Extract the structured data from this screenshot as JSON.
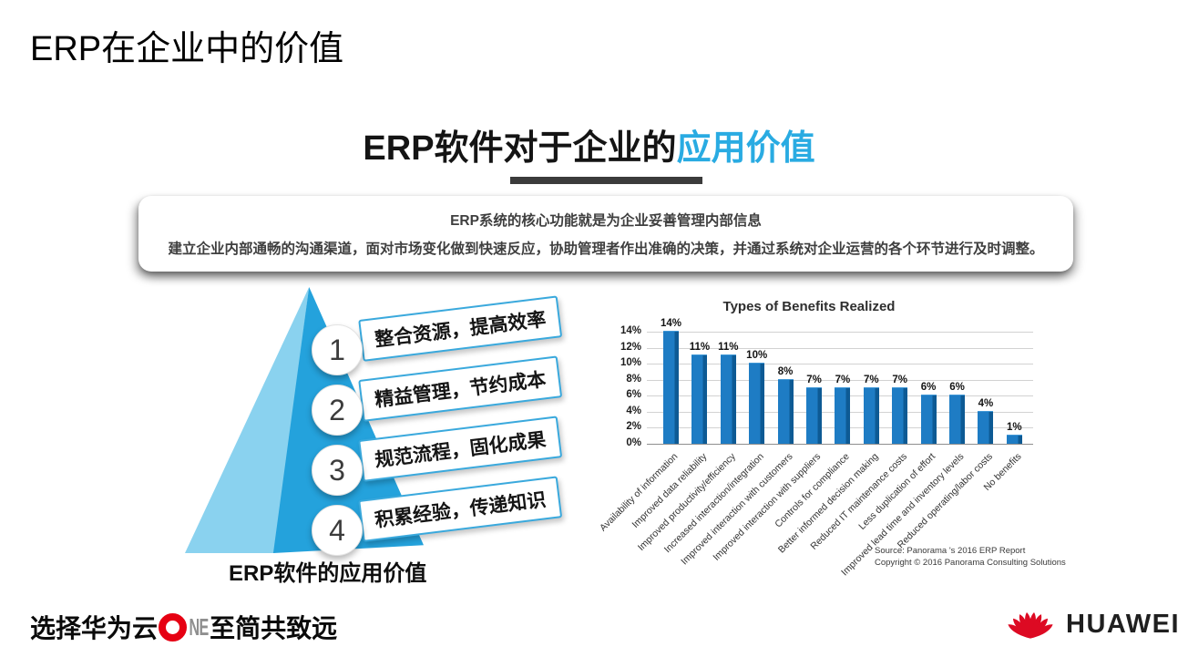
{
  "page_title": "ERP在企业中的价值",
  "heading": {
    "black": "ERP软件对于企业的",
    "blue": "应用价值"
  },
  "summary_card": {
    "line1": "ERP系统的核心功能就是为企业妥善管理内部信息",
    "line2": "建立企业内部通畅的沟通渠道，面对市场变化做到快速反应，协助管理者作出准确的决策，并通过系统对企业运营的各个环节进行及时调整。"
  },
  "pyramid": {
    "caption": "ERP软件的应用价值",
    "items": [
      {
        "num": "1",
        "label": "整合资源，提高效率"
      },
      {
        "num": "2",
        "label": "精益管理，节约成本"
      },
      {
        "num": "3",
        "label": "规范流程，固化成果"
      },
      {
        "num": "4",
        "label": "积累经验，传递知识"
      }
    ]
  },
  "chart_data": {
    "type": "bar",
    "title": "Types of Benefits Realized",
    "categories": [
      "Availability of information",
      "Improved data reliability",
      "Improved productivity/efficiency",
      "Increased interaction/integration",
      "Improved interaction with customers",
      "Improved interaction with suppliers",
      "Controls for compliance",
      "Better informed decision making",
      "Reduced IT maintenance costs",
      "Less duplication of effort",
      "Improved lead time and inventory levels",
      "Reduced operating/labor costs",
      "No benefits"
    ],
    "values": [
      14,
      11,
      11,
      10,
      8,
      7,
      7,
      7,
      7,
      6,
      6,
      4,
      1
    ],
    "unit": "%",
    "xlabel": "",
    "ylabel": "",
    "ylim": [
      0,
      14
    ],
    "yticks": [
      "14%",
      "12%",
      "10%",
      "8%",
      "6%",
      "4%",
      "2%",
      "0%"
    ],
    "grid": true,
    "legend": false,
    "bar_color": "#1e7cc4",
    "source_line1": "Source: Panorama 's 2016 ERP Report",
    "source_line2": "Copyright © 2016 Panorama Consulting Solutions"
  },
  "footer": {
    "slogan_prefix": "选择华为云",
    "slogan_one_letters": "NE",
    "slogan_suffix": "至简共致远",
    "brand": "HUAWEI"
  },
  "colors": {
    "accent_blue": "#29abe2",
    "pyramid_light": "#8ad2ef",
    "pyramid_dark": "#24a2dc",
    "bar_blue": "#1e7cc4",
    "huawei_red": "#e60012"
  }
}
